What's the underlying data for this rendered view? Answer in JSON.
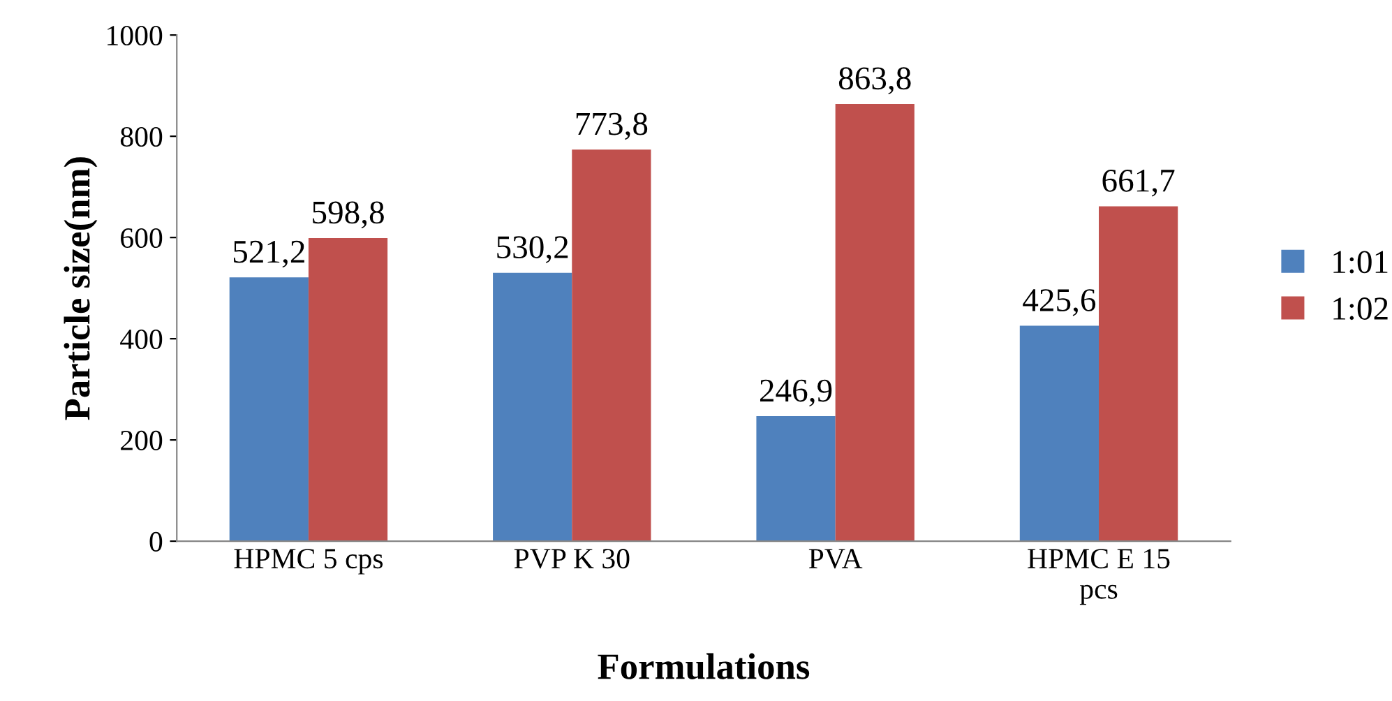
{
  "chart_data": {
    "type": "bar",
    "xlabel": "Formulations",
    "ylabel": "Particle size(nm)",
    "categories": [
      "HPMC 5 cps",
      "PVP K 30",
      "PVA",
      "HPMC E 15\npcs"
    ],
    "series": [
      {
        "name": "1:01",
        "color": "#4f81bd",
        "values": [
          521.2,
          530.2,
          246.9,
          425.6
        ],
        "value_labels": [
          "521,2",
          "530,2",
          "246,9",
          "425,6"
        ]
      },
      {
        "name": "1:02",
        "color": "#c0504d",
        "values": [
          598.8,
          773.8,
          863.8,
          661.7
        ],
        "value_labels": [
          "598,8",
          "773,8",
          "863,8",
          "661,7"
        ]
      }
    ],
    "ylim": [
      0,
      1000
    ],
    "yticks": [
      0,
      200,
      400,
      600,
      800,
      1000
    ],
    "grid": false,
    "legend": "right"
  }
}
